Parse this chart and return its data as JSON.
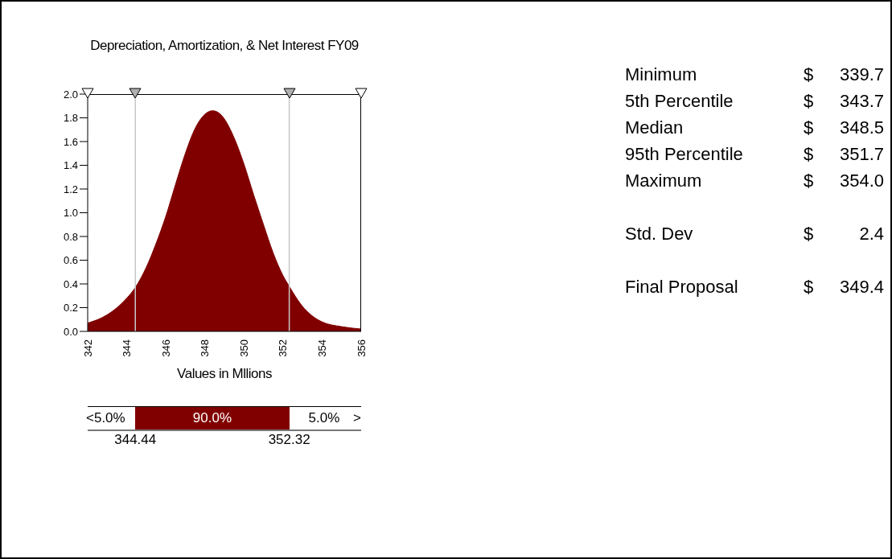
{
  "chart_data": {
    "type": "area",
    "title": "Depreciation, Amortization, & Net Interest FY09",
    "xlabel": "Values in Mllions",
    "x": [
      342,
      343,
      344,
      344.44,
      345,
      345.5,
      346,
      346.5,
      347,
      347.5,
      348,
      348.4,
      348.8,
      349,
      349.5,
      350,
      350.5,
      351,
      351.5,
      352,
      352.32,
      352.5,
      353,
      353.5,
      354,
      355,
      356
    ],
    "series": [
      {
        "color": "#800000",
        "values": [
          0.07,
          0.14,
          0.28,
          0.37,
          0.54,
          0.74,
          0.97,
          1.24,
          1.5,
          1.71,
          1.83,
          1.86,
          1.83,
          1.79,
          1.63,
          1.41,
          1.15,
          0.9,
          0.66,
          0.47,
          0.38,
          0.33,
          0.21,
          0.13,
          0.08,
          0.04,
          0.02
        ]
      }
    ],
    "xlim": [
      342,
      356
    ],
    "xticks": [
      342,
      344,
      346,
      348,
      350,
      352,
      354,
      356
    ],
    "ylim": [
      0,
      2.0
    ],
    "yticks": [
      {
        "value": 0,
        "label": "0.0"
      },
      {
        "value": 0.2,
        "label": "0.2"
      },
      {
        "value": 0.4,
        "label": "0.4"
      },
      {
        "value": 0.6,
        "label": "0.6"
      },
      {
        "value": 0.8,
        "label": "0.8"
      },
      {
        "value": 1.0,
        "label": "1.0"
      },
      {
        "value": 1.2,
        "label": "1.2"
      },
      {
        "value": 1.4,
        "label": "1.4"
      },
      {
        "value": 1.6,
        "label": "1.6"
      },
      {
        "value": 1.8,
        "label": "1.8"
      },
      {
        "value": 2.0,
        "label": "2.0"
      }
    ],
    "ref_lines": [
      {
        "axis": "x",
        "value": 344.44,
        "color": "#c8c8c8"
      },
      {
        "axis": "x",
        "value": 352.32,
        "color": "#c8c8c8"
      }
    ],
    "grid": false,
    "legend": false,
    "annotations": [
      "<5.0%",
      "90.0%",
      "5.0% >",
      "344.44",
      "352.32",
      "Minimum\t$\t339.7",
      "5th Percentile\t$\t343.7",
      "Median\t$\t348.5",
      "95th Percentile\t$\t351.7",
      "Maximum\t$\t354.0",
      "Std. Dev\t$\t2.4",
      "Final Proposal\t$\t349.4"
    ]
  }
}
